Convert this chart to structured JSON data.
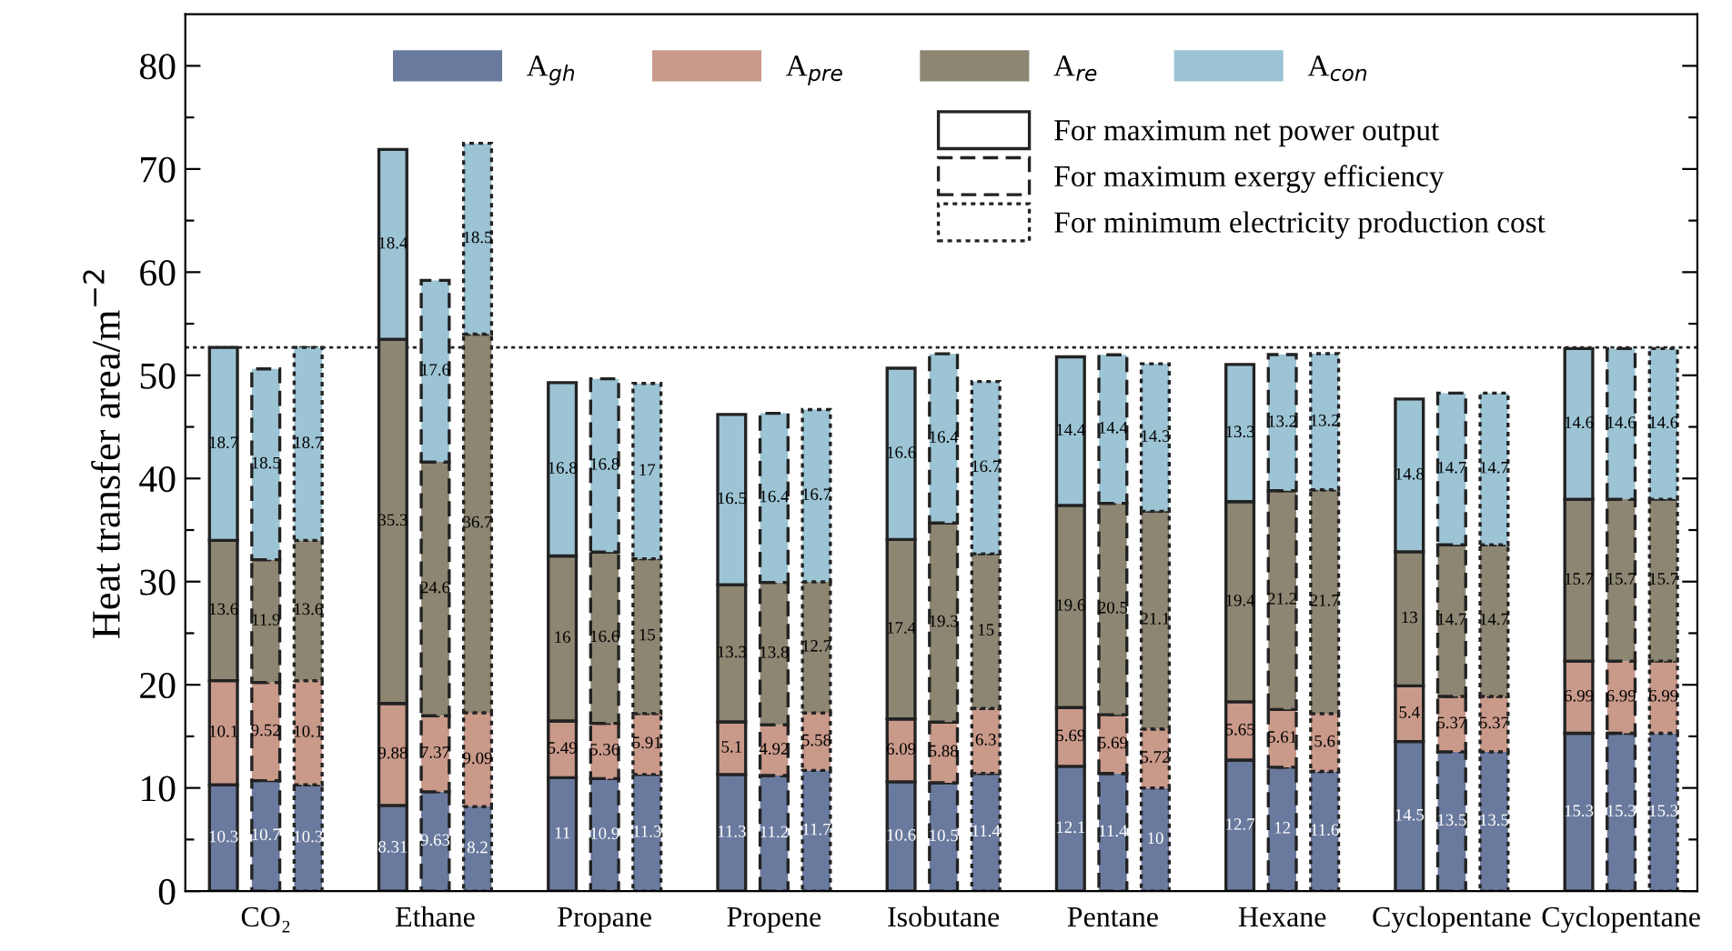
{
  "chart_data": {
    "type": "bar",
    "stacked": true,
    "ylabel": "Heat transfer area/m$^{−2}$",
    "categories": [
      null,
      "CO₂",
      null,
      null,
      null,
      "Ethane",
      null,
      null,
      null,
      "Propane",
      null,
      null,
      null,
      "Propene",
      null,
      null,
      null,
      "Isobutane",
      null,
      null,
      null,
      "Pentane",
      null,
      null,
      null,
      "Hexane",
      null,
      null,
      null,
      "Cyclopentane",
      null,
      null,
      null,
      "Cyclopentane",
      null
    ],
    "line_style": [
      "solid",
      "dashed",
      "dotted",
      null,
      "solid",
      "dashed",
      "dotted",
      null,
      "solid",
      "dashed",
      "dotted",
      null,
      "solid",
      "dashed",
      "dotted",
      null,
      "solid",
      "dashed",
      "dotted",
      null,
      "solid",
      "dashed",
      "dotted",
      null,
      "solid",
      "dashed",
      "dotted",
      null,
      "solid",
      "dashed",
      "dotted",
      null,
      "solid",
      "dashed",
      "dotted"
    ],
    "series": [
      {
        "name": "A$_{gh}$",
        "color": "#6a7a9e",
        "values": [
          10.3,
          10.7,
          10.3,
          null,
          8.31,
          9.63,
          8.2,
          null,
          11,
          10.9,
          11.3,
          null,
          11.3,
          11.2,
          11.7,
          null,
          10.6,
          10.5,
          11.4,
          null,
          12.1,
          11.4,
          10,
          null,
          12.7,
          12,
          11.6,
          null,
          14.5,
          13.5,
          13.5,
          null,
          15.3,
          15.3,
          15.3
        ]
      },
      {
        "name": "A$_{pre}$",
        "color": "#c9998a",
        "values": [
          10.1,
          9.52,
          10.1,
          null,
          9.88,
          7.37,
          9.09,
          null,
          5.49,
          5.36,
          5.91,
          null,
          5.1,
          4.92,
          5.58,
          null,
          6.09,
          5.88,
          6.3,
          null,
          5.69,
          5.69,
          5.72,
          null,
          5.65,
          5.61,
          5.6,
          null,
          5.4,
          5.37,
          5.37,
          null,
          6.99,
          6.99,
          6.99
        ]
      },
      {
        "name": "A$_{re}$",
        "color": "#8c8672",
        "values": [
          13.6,
          11.9,
          13.6,
          null,
          35.3,
          24.6,
          36.7,
          null,
          16,
          16.6,
          15,
          null,
          13.3,
          13.8,
          12.7,
          null,
          17.4,
          19.3,
          15,
          null,
          19.6,
          20.5,
          21.1,
          null,
          19.4,
          21.2,
          21.7,
          null,
          13,
          14.7,
          14.7,
          null,
          15.7,
          15.7,
          15.7
        ]
      },
      {
        "name": "A$_{con}$",
        "color": "#9cc4d4",
        "values": [
          18.7,
          18.5,
          18.7,
          null,
          18.4,
          17.6,
          18.5,
          null,
          16.8,
          16.8,
          17,
          null,
          16.5,
          16.4,
          16.7,
          null,
          16.6,
          16.4,
          16.7,
          null,
          14.4,
          14.4,
          14.3,
          null,
          13.3,
          13.2,
          13.2,
          null,
          14.8,
          14.7,
          14.7,
          null,
          14.6,
          14.6,
          14.6
        ]
      }
    ],
    "annotations": [
      "For maximum net power output",
      "For maximum exergy efficiency",
      "For minimum electricity production cost"
    ],
    "ref_lines": [
      {
        "axis": "y",
        "value": 52.7,
        "label": null,
        "color": "#222222",
        "line_style": "dotted"
      }
    ],
    "data_labels": true,
    "legend": "top",
    "grid": false,
    "ylim": [
      0,
      85
    ],
    "yticks": [
      0,
      {
        "value": 5,
        "label": null
      },
      10,
      {
        "value": 15,
        "label": null
      },
      20,
      {
        "value": 25,
        "label": null
      },
      30,
      {
        "value": 35,
        "label": null
      },
      40,
      {
        "value": 45,
        "label": null
      },
      50,
      {
        "value": 55,
        "label": null
      },
      60,
      {
        "value": 65,
        "label": null
      },
      70,
      {
        "value": 75,
        "label": null
      },
      80
    ]
  }
}
